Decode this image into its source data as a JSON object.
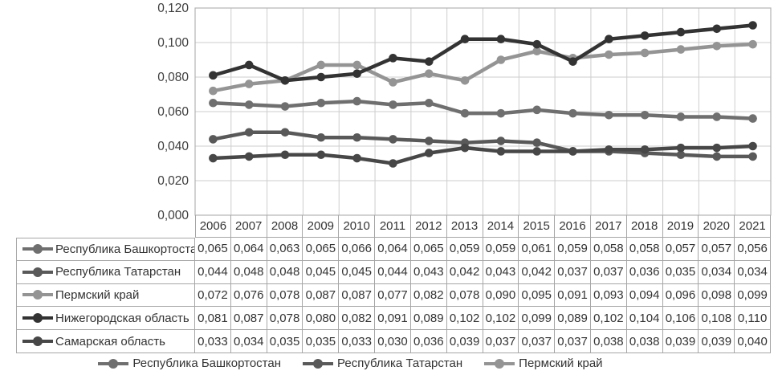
{
  "chart_data": {
    "type": "line",
    "x": [
      "2006",
      "2007",
      "2008",
      "2009",
      "2010",
      "2011",
      "2012",
      "2013",
      "2014",
      "2015",
      "2016",
      "2017",
      "2018",
      "2019",
      "2020",
      "2021"
    ],
    "series": [
      {
        "name": "Республика Башкортостан",
        "color": "#6f6f6f",
        "values": [
          0.065,
          0.064,
          0.063,
          0.065,
          0.066,
          0.064,
          0.065,
          0.059,
          0.059,
          0.061,
          0.059,
          0.058,
          0.058,
          0.057,
          0.057,
          0.056
        ]
      },
      {
        "name": "Республика Татарстан",
        "color": "#595959",
        "values": [
          0.044,
          0.048,
          0.048,
          0.045,
          0.045,
          0.044,
          0.043,
          0.042,
          0.043,
          0.042,
          0.037,
          0.037,
          0.036,
          0.035,
          0.034,
          0.034
        ]
      },
      {
        "name": "Пермский край",
        "color": "#949494",
        "values": [
          0.072,
          0.076,
          0.078,
          0.087,
          0.087,
          0.077,
          0.082,
          0.078,
          0.09,
          0.095,
          0.091,
          0.093,
          0.094,
          0.096,
          0.098,
          0.099
        ]
      },
      {
        "name": "Нижегородская область",
        "color": "#333333",
        "values": [
          0.081,
          0.087,
          0.078,
          0.08,
          0.082,
          0.091,
          0.089,
          0.102,
          0.102,
          0.099,
          0.089,
          0.102,
          0.104,
          0.106,
          0.108,
          0.11
        ]
      },
      {
        "name": "Самарская область",
        "color": "#474747",
        "values": [
          0.033,
          0.034,
          0.035,
          0.035,
          0.033,
          0.03,
          0.036,
          0.039,
          0.037,
          0.037,
          0.037,
          0.038,
          0.038,
          0.039,
          0.039,
          0.04
        ]
      }
    ],
    "title": "",
    "xlabel": "",
    "ylabel": "",
    "ylim": [
      0,
      0.12
    ],
    "ytick_step": 0.02,
    "y_tick_labels": [
      "0,000",
      "0,020",
      "0,040",
      "0,060",
      "0,080",
      "0,100",
      "0,120"
    ],
    "decimal_separator": ",",
    "grid": true,
    "data_table_shown": true,
    "legend_position": "bottom",
    "legend_visible_items": [
      "Республика Башкортостан",
      "Республика Татарстан",
      "Пермский край"
    ]
  }
}
